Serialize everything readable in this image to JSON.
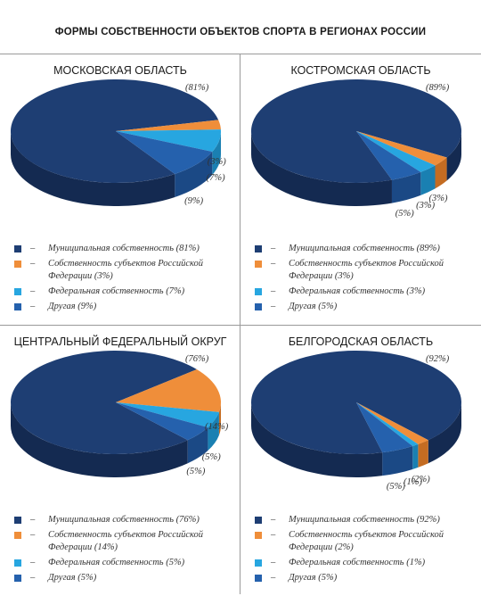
{
  "title": "ФОРМЫ СОБСТВЕННОСТИ ОБЪЕКТОВ СПОРТА В РЕГИОНАХ РОССИИ",
  "legend_dash": "–",
  "colors": {
    "municipal": "#1e3e73",
    "municipal_side": "#142a51",
    "subject": "#ef8e3a",
    "subject_side": "#c46c22",
    "federal": "#27a6e0",
    "federal_side": "#1a80b2",
    "other": "#2561ad",
    "other_side": "#1b4985"
  },
  "chart_data": [
    {
      "type": "pie",
      "title": "МОСКОВСКАЯ ОБЛАСТЬ",
      "categories": [
        "Муниципальная собственность",
        "Собственность субъектов Российской Федерации",
        "Федеральная собственность",
        "Другая"
      ],
      "values": [
        81,
        3,
        7,
        9
      ],
      "labels": [
        "(81%)",
        "(3%)",
        "(7%)",
        "(9%)"
      ],
      "legend": [
        "Муниципальная собственность (81%)",
        "Собственность субъектов Российской Федерации (3%)",
        "Федеральная собственность (7%)",
        "Другая (9%)"
      ]
    },
    {
      "type": "pie",
      "title": "КОСТРОМСКАЯ ОБЛАСТЬ",
      "categories": [
        "Муниципальная собственность",
        "Собственность субъектов Российской Федерации",
        "Федеральная собственность",
        "Другая"
      ],
      "values": [
        89,
        3,
        3,
        5
      ],
      "labels": [
        "(89%)",
        "(3%)",
        "(3%)",
        "(5%)"
      ],
      "legend": [
        "Муниципальная собственность (89%)",
        "Собственность субъектов Российской Федерации (3%)",
        "Федеральная собственность (3%)",
        "Другая (5%)"
      ]
    },
    {
      "type": "pie",
      "title": "ЦЕНТРАЛЬНЫЙ ФЕДЕРАЛЬНЫЙ ОКРУГ",
      "categories": [
        "Муниципальная собственность",
        "Собственность субъектов Российской Федерации",
        "Федеральная собственность",
        "Другая"
      ],
      "values": [
        76,
        14,
        5,
        5
      ],
      "labels": [
        "(76%)",
        "(14%)",
        "(5%)",
        "(5%)"
      ],
      "legend": [
        "Муниципальная собственность (76%)",
        "Собственность субъектов Российской Федерации (14%)",
        "Федеральная собственность (5%)",
        "Другая (5%)"
      ]
    },
    {
      "type": "pie",
      "title": "БЕЛГОРОДСКАЯ ОБЛАСТЬ",
      "categories": [
        "Муниципальная собственность",
        "Собственность субъектов Российской Федерации",
        "Федеральная собственность",
        "Другая"
      ],
      "values": [
        92,
        2,
        1,
        5
      ],
      "labels": [
        "(92%)",
        "(2%)",
        "(1%)",
        "(5%)"
      ],
      "legend": [
        "Муниципальная собственность (92%)",
        "Собственность субъектов Российской Федерации (2%)",
        "Федеральная собственность (1%)",
        "Другая (5%)"
      ]
    }
  ]
}
